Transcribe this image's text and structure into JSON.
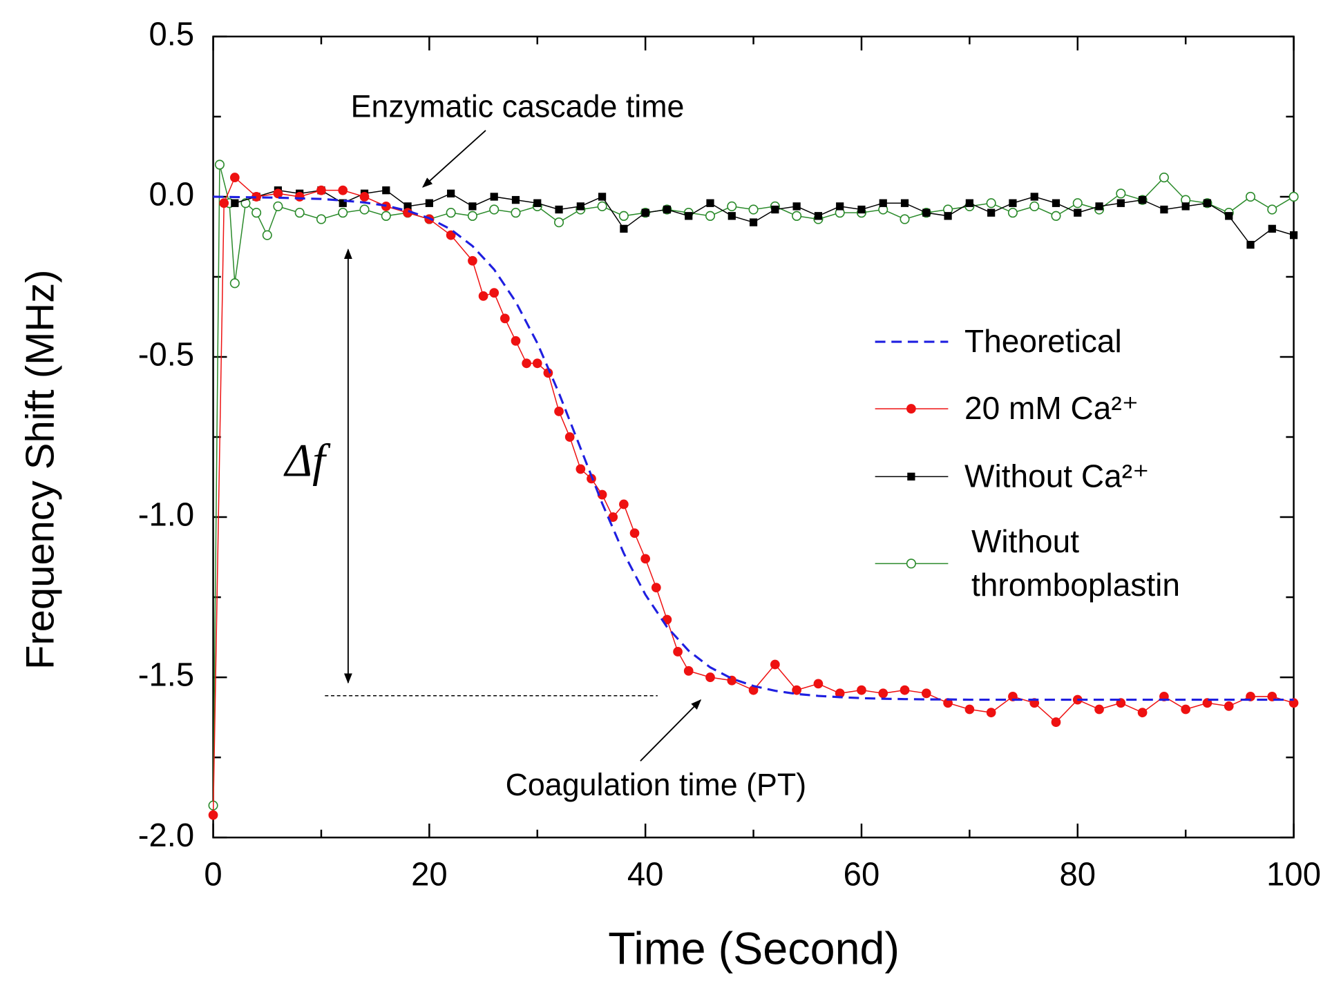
{
  "chart_data": {
    "type": "line",
    "xlabel": "Time (Second)",
    "ylabel": "Frequency Shift (MHz)",
    "xlim": [
      0,
      100
    ],
    "ylim": [
      -2.0,
      0.5
    ],
    "xticks": [
      0,
      20,
      40,
      60,
      80,
      100
    ],
    "xminorticks": [
      10,
      30,
      50,
      70,
      90
    ],
    "yticks": [
      0.5,
      {
        "value": 0,
        "label": "0.0"
      },
      -0.5,
      {
        "value": -1,
        "label": "-1.0"
      },
      -1.5,
      {
        "value": -2,
        "label": "-2.0"
      }
    ],
    "yminorticks": [
      0.25,
      -0.25,
      -0.75,
      -1.25,
      -1.75
    ],
    "annotations": [
      "Enzymatic cascade time",
      "Coagulation time (PT)",
      "Δf"
    ],
    "series": [
      {
        "name": "Theoretical",
        "color": "#1f1fe0",
        "dash": true,
        "marker": "none",
        "x": [
          0,
          2,
          4,
          6,
          8,
          10,
          12,
          14,
          16,
          18,
          20,
          22,
          24,
          26,
          28,
          30,
          32,
          34,
          36,
          38,
          40,
          42,
          44,
          46,
          48,
          50,
          52,
          54,
          56,
          58,
          60,
          62,
          64,
          66,
          68,
          70,
          72,
          74,
          76,
          78,
          80,
          82,
          84,
          86,
          88,
          90,
          92,
          94,
          96,
          98,
          100
        ],
        "values": [
          0,
          -0.001,
          -0.002,
          -0.003,
          -0.005,
          -0.007,
          -0.012,
          -0.018,
          -0.028,
          -0.044,
          -0.067,
          -0.102,
          -0.154,
          -0.227,
          -0.328,
          -0.457,
          -0.613,
          -0.785,
          -0.957,
          -1.113,
          -1.242,
          -1.343,
          -1.417,
          -1.469,
          -1.504,
          -1.527,
          -1.542,
          -1.552,
          -1.558,
          -1.562,
          -1.565,
          -1.567,
          -1.568,
          -1.569,
          -1.569,
          -1.57,
          -1.57,
          -1.57,
          -1.57,
          -1.57,
          -1.57,
          -1.57,
          -1.57,
          -1.57,
          -1.57,
          -1.57,
          -1.57,
          -1.57,
          -1.57,
          -1.57,
          -1.57
        ]
      },
      {
        "name": "20 mM Ca²⁺",
        "color": "#ee1111",
        "dash": false,
        "marker": "circle",
        "x": [
          0,
          1,
          2,
          4,
          6,
          8,
          10,
          12,
          14,
          16,
          18,
          20,
          22,
          24,
          25,
          26,
          27,
          28,
          29,
          30,
          31,
          32,
          33,
          34,
          35,
          36,
          37,
          38,
          39,
          40,
          41,
          42,
          43,
          44,
          46,
          48,
          50,
          52,
          54,
          56,
          58,
          60,
          62,
          64,
          66,
          68,
          70,
          72,
          74,
          76,
          78,
          80,
          82,
          84,
          86,
          88,
          90,
          92,
          94,
          96,
          98,
          100
        ],
        "values": [
          -1.93,
          -0.02,
          0.06,
          0,
          0.01,
          0,
          0.02,
          0.02,
          0,
          -0.03,
          -0.05,
          -0.07,
          -0.12,
          -0.2,
          -0.31,
          -0.3,
          -0.38,
          -0.45,
          -0.52,
          -0.52,
          -0.55,
          -0.67,
          -0.75,
          -0.85,
          -0.88,
          -0.93,
          -1.0,
          -0.96,
          -1.05,
          -1.13,
          -1.22,
          -1.32,
          -1.42,
          -1.48,
          -1.5,
          -1.51,
          -1.54,
          -1.46,
          -1.54,
          -1.52,
          -1.55,
          -1.54,
          -1.55,
          -1.54,
          -1.55,
          -1.58,
          -1.6,
          -1.61,
          -1.56,
          -1.58,
          -1.64,
          -1.57,
          -1.6,
          -1.58,
          -1.61,
          -1.56,
          -1.6,
          -1.58,
          -1.59,
          -1.56,
          -1.56,
          -1.58
        ]
      },
      {
        "name": "Without Ca²⁺",
        "color": "#000000",
        "dash": false,
        "marker": "square",
        "x": [
          2,
          4,
          6,
          8,
          10,
          12,
          14,
          16,
          18,
          20,
          22,
          24,
          26,
          28,
          30,
          32,
          34,
          36,
          38,
          40,
          42,
          44,
          46,
          48,
          50,
          52,
          54,
          56,
          58,
          60,
          62,
          64,
          66,
          68,
          70,
          72,
          74,
          76,
          78,
          80,
          82,
          84,
          86,
          88,
          90,
          92,
          94,
          96,
          98,
          100
        ],
        "values": [
          -0.02,
          0,
          0.02,
          0.01,
          0.02,
          -0.02,
          0.01,
          0.02,
          -0.03,
          -0.02,
          0.01,
          -0.03,
          0,
          -0.01,
          -0.02,
          -0.04,
          -0.03,
          0,
          -0.1,
          -0.05,
          -0.04,
          -0.06,
          -0.02,
          -0.06,
          -0.08,
          -0.04,
          -0.03,
          -0.06,
          -0.03,
          -0.04,
          -0.02,
          -0.02,
          -0.05,
          -0.06,
          -0.02,
          -0.05,
          -0.02,
          0,
          -0.02,
          -0.05,
          -0.03,
          -0.02,
          -0.01,
          -0.04,
          -0.03,
          -0.02,
          -0.06,
          -0.15,
          -0.1,
          -0.12
        ]
      },
      {
        "name": "Without thromboplastin",
        "color": "#2a8a2a",
        "dash": false,
        "marker": "open-circle",
        "x": [
          0,
          0.6,
          1.5,
          2,
          3,
          4,
          5,
          6,
          8,
          10,
          12,
          14,
          16,
          18,
          20,
          22,
          24,
          26,
          28,
          30,
          32,
          34,
          36,
          38,
          40,
          42,
          44,
          46,
          48,
          50,
          52,
          54,
          56,
          58,
          60,
          62,
          64,
          66,
          68,
          70,
          72,
          74,
          76,
          78,
          80,
          82,
          84,
          86,
          88,
          90,
          92,
          94,
          96,
          98,
          100
        ],
        "values": [
          -1.9,
          0.1,
          -0.02,
          -0.27,
          -0.02,
          -0.05,
          -0.12,
          -0.03,
          -0.05,
          -0.07,
          -0.05,
          -0.04,
          -0.06,
          -0.05,
          -0.07,
          -0.05,
          -0.06,
          -0.04,
          -0.05,
          -0.03,
          -0.08,
          -0.04,
          -0.03,
          -0.06,
          -0.05,
          -0.04,
          -0.05,
          -0.06,
          -0.03,
          -0.04,
          -0.03,
          -0.06,
          -0.07,
          -0.05,
          -0.05,
          -0.04,
          -0.07,
          -0.05,
          -0.04,
          -0.03,
          -0.02,
          -0.05,
          -0.03,
          -0.06,
          -0.02,
          -0.04,
          0.01,
          -0.01,
          0.06,
          -0.01,
          -0.02,
          -0.05,
          0,
          -0.04,
          0
        ]
      }
    ]
  }
}
